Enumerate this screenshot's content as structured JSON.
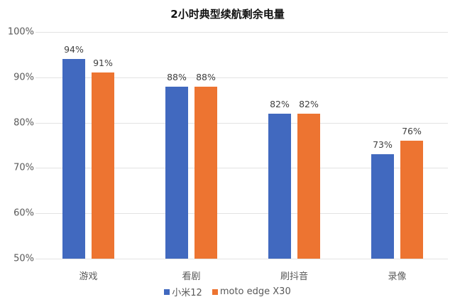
{
  "chart_data": {
    "type": "bar",
    "title": "2小时典型续航剩余电量",
    "categories": [
      "游戏",
      "看剧",
      "刷抖音",
      "录像"
    ],
    "series": [
      {
        "name": "小米12",
        "color": "#4169BF",
        "values": [
          94,
          88,
          82,
          73
        ],
        "labels": [
          "94%",
          "88%",
          "82%",
          "73%"
        ]
      },
      {
        "name": "moto edge X30",
        "color": "#ED7431",
        "values": [
          91,
          88,
          82,
          76
        ],
        "labels": [
          "91%",
          "88%",
          "82%",
          "76%"
        ]
      }
    ],
    "xlabel": "",
    "ylabel": "",
    "ylim": [
      50,
      100
    ],
    "yticks": [
      "100%",
      "90%",
      "80%",
      "70%",
      "60%",
      "50%"
    ],
    "grid": true,
    "legend_position": "bottom"
  }
}
